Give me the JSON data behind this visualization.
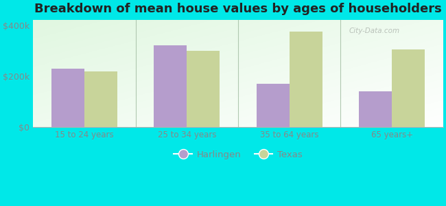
{
  "title": "Breakdown of mean house values by ages of householders",
  "categories": [
    "15 to 24 years",
    "25 to 34 years",
    "35 to 64 years",
    "65 years+"
  ],
  "harlingen": [
    230000,
    320000,
    170000,
    140000
  ],
  "texas": [
    218000,
    300000,
    375000,
    305000
  ],
  "harlingen_color": "#b59dcc",
  "texas_color": "#c8d49a",
  "bar_width": 0.32,
  "ylim": [
    0,
    420000
  ],
  "yticks": [
    0,
    200000,
    400000
  ],
  "ytick_labels": [
    "$0",
    "$200k",
    "$400k"
  ],
  "background_outer": "#00e8e8",
  "background_inner_top": "#d4e8c8",
  "background_inner_bottom": "#f8fff8",
  "title_fontsize": 13,
  "legend_labels": [
    "Harlingen",
    "Texas"
  ],
  "watermark": "City-Data.com",
  "separator_color": "#b0c8b0",
  "tick_label_color": "#888888",
  "spine_color": "#b0b0b0"
}
